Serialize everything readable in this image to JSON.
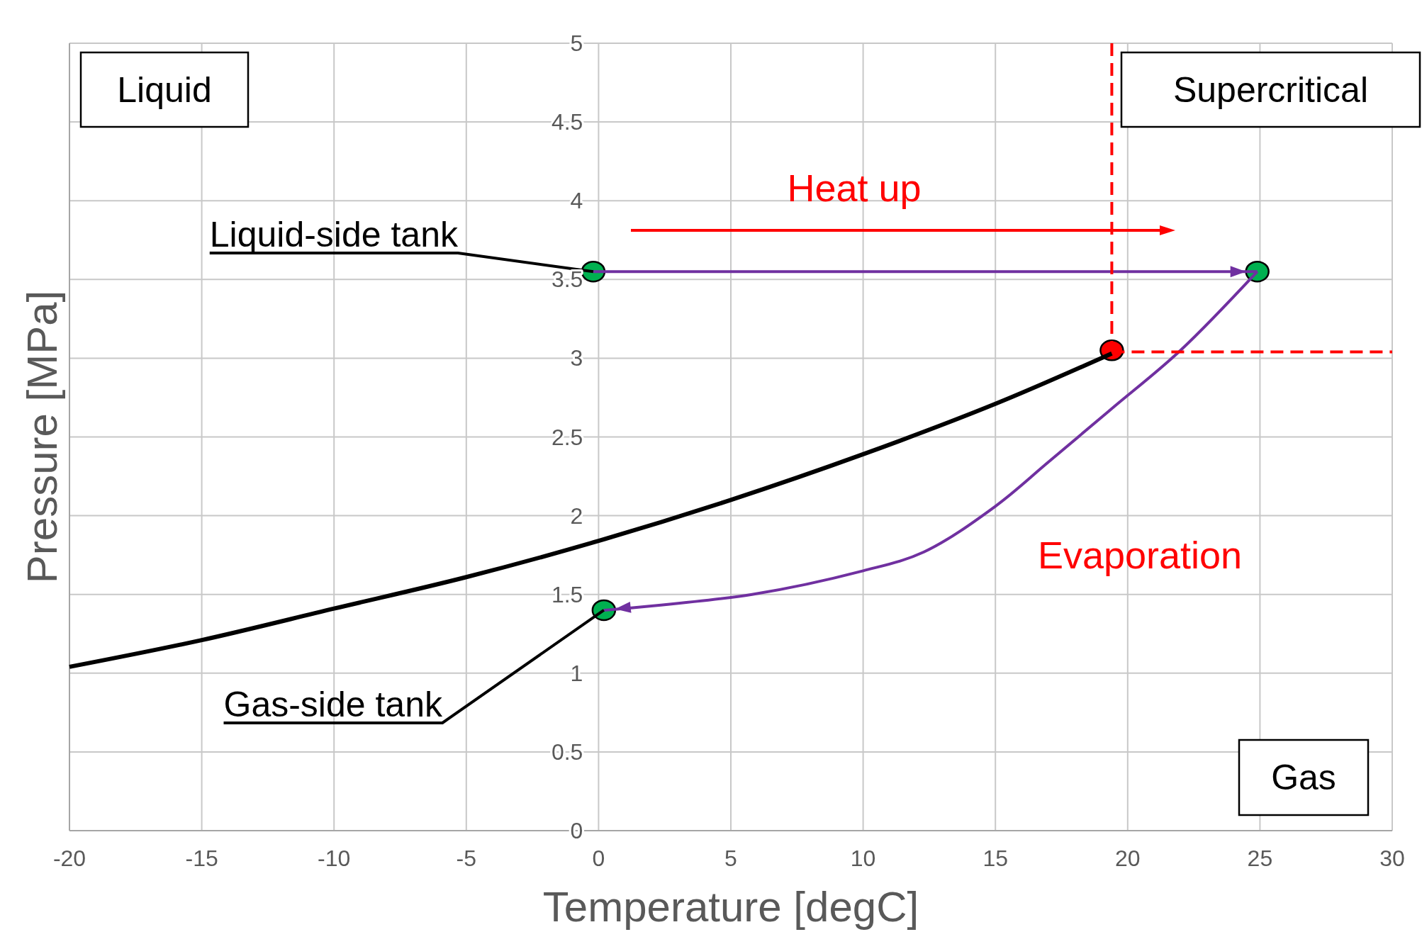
{
  "chart_data": {
    "type": "line",
    "xlabel": "Temperature [degC]",
    "ylabel": "Pressure [MPa]",
    "xlim": [
      -20,
      30
    ],
    "xticks": [
      -20,
      -15,
      -10,
      -5,
      0,
      5,
      10,
      15,
      20,
      25,
      30
    ],
    "ylim": [
      0,
      5
    ],
    "yticks": [
      0,
      0.5,
      1,
      1.5,
      2,
      2.5,
      3,
      3.5,
      4,
      4.5,
      5
    ],
    "grid": true,
    "series": [
      {
        "color": "#000000",
        "line_style": "solid",
        "x": [
          -20,
          -15,
          -10,
          -5,
          0,
          5,
          10,
          15,
          19.4
        ],
        "values": [
          1.04,
          1.21,
          1.41,
          1.61,
          1.84,
          2.1,
          2.39,
          2.71,
          3.03
        ]
      },
      {
        "color": "#7030a0",
        "line_style": "solid",
        "x": [
          -0.2,
          24.9
        ],
        "values": [
          3.55,
          3.55
        ]
      },
      {
        "color": "#7030a0",
        "line_style": "solid",
        "x": [
          24.9,
          22,
          19.4,
          17,
          15,
          12.3,
          10,
          5.8,
          0.2
        ],
        "values": [
          3.55,
          3.05,
          2.68,
          2.34,
          2.06,
          1.77,
          1.65,
          1.5,
          1.4
        ]
      },
      {
        "color": "#ff0000",
        "line_style": "dashed",
        "x": [
          19.4,
          19.4
        ],
        "values": [
          5,
          3.05
        ]
      },
      {
        "color": "#ff0000",
        "line_style": "dashed",
        "x": [
          19.4,
          30
        ],
        "values": [
          3.04,
          3.04
        ]
      },
      {
        "type": "scatter",
        "color": "#ff0000",
        "marker": "circle",
        "x": [
          19.4
        ],
        "values": [
          3.05
        ]
      },
      {
        "type": "scatter",
        "color": "#00b050",
        "marker": "circle",
        "x": [
          -0.2,
          24.9,
          0.2
        ],
        "values": [
          3.55,
          3.55,
          1.4
        ]
      }
    ],
    "annotations": [
      "Liquid",
      "Supercritical",
      "Gas",
      "Heat up",
      "Evaporation",
      {
        "text": "Liquid-side tank",
        "x": -0.2,
        "y": 3.55
      },
      {
        "text": "Gas-side tank",
        "x": 0.2,
        "y": 1.4
      }
    ]
  }
}
